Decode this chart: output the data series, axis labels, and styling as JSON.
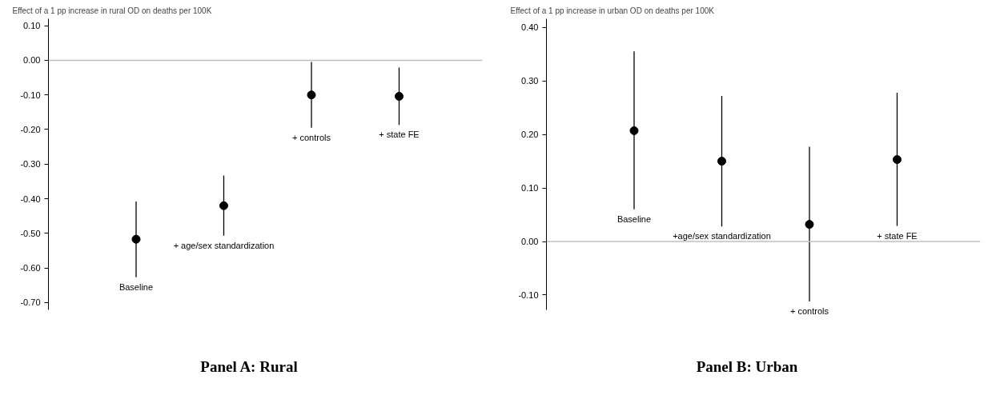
{
  "chart_data": [
    {
      "type": "scatter",
      "title": "Panel A: Rural",
      "ylabel": "Effect of a 1 pp increase in rural OD on deaths per 100K",
      "categories": [
        "Baseline",
        "+ age/sex standardization",
        "+ controls",
        "+ state FE"
      ],
      "values": [
        -0.517,
        -0.42,
        -0.1,
        -0.104
      ],
      "errors": [
        [
          -0.627,
          -0.408
        ],
        [
          -0.507,
          -0.333
        ],
        [
          -0.195,
          -0.005
        ],
        [
          -0.187,
          -0.021
        ]
      ],
      "color": "#000000",
      "marker": "circle",
      "grid": false,
      "tick_labels": "y",
      "ylim": [
        -0.72,
        0.12
      ],
      "yticks": [
        {
          "value": 0.1,
          "label": "0.10"
        },
        {
          "value": 0,
          "label": "0.00"
        },
        {
          "value": -0.1,
          "label": "-0.10"
        },
        {
          "value": -0.2,
          "label": "-0.20"
        },
        {
          "value": -0.3,
          "label": "-0.30"
        },
        {
          "value": -0.4,
          "label": "-0.40"
        },
        {
          "value": -0.5,
          "label": "-0.50"
        },
        {
          "value": -0.6,
          "label": "-0.60"
        },
        {
          "value": -0.7,
          "label": "-0.70"
        }
      ],
      "ref_lines": [
        {
          "axis": "y",
          "value": 0,
          "label": null,
          "color": "#c0c0c0"
        }
      ]
    },
    {
      "type": "scatter",
      "title": "Panel B: Urban",
      "ylabel": "Effect of a 1 pp increase in urban OD on deaths per 100K",
      "categories": [
        "Baseline",
        "+age/sex standardization",
        "+ controls",
        "+ state FE"
      ],
      "values": [
        0.207,
        0.15,
        0.032,
        0.153
      ],
      "errors": [
        [
          0.06,
          0.355
        ],
        [
          0.028,
          0.272
        ],
        [
          -0.112,
          0.177
        ],
        [
          0.029,
          0.278
        ]
      ],
      "color": "#000000",
      "marker": "circle",
      "grid": false,
      "tick_labels": "y",
      "ylim": [
        -0.127,
        0.416
      ],
      "yticks": [
        {
          "value": 0.4,
          "label": "0.40"
        },
        {
          "value": 0.3,
          "label": "0.30"
        },
        {
          "value": 0.2,
          "label": "0.20"
        },
        {
          "value": 0.1,
          "label": "0.10"
        },
        {
          "value": 0,
          "label": "0.00"
        },
        {
          "value": -0.1,
          "label": "-0.10"
        }
      ],
      "ref_lines": [
        {
          "axis": "y",
          "value": 0,
          "label": null,
          "color": "#c0c0c0"
        }
      ]
    }
  ]
}
